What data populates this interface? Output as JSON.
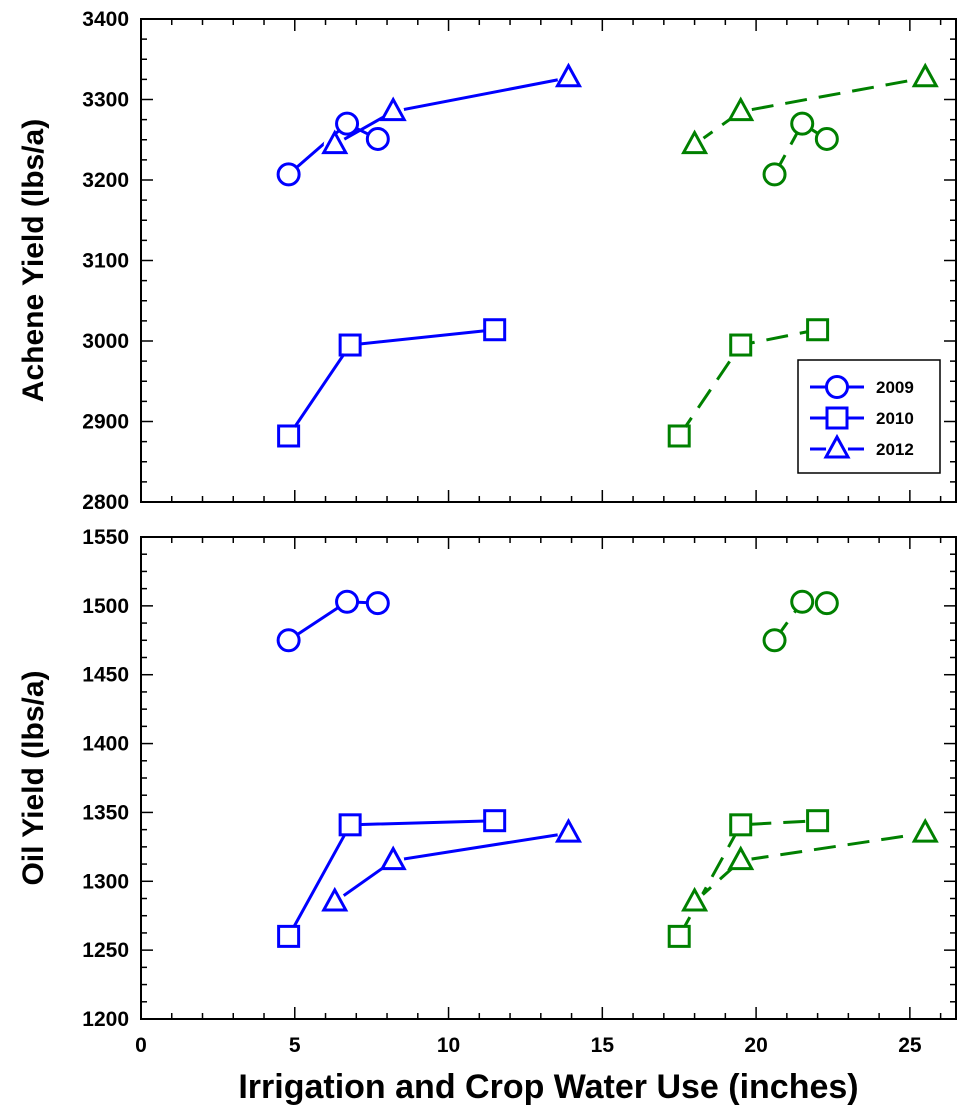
{
  "chart_data": [
    {
      "type": "line",
      "panel": "top",
      "ylabel": "Achene Yield (lbs/a)",
      "xlim": [
        0,
        26.5
      ],
      "ylim": [
        2800,
        3400
      ],
      "x_ticks": [
        0,
        5,
        10,
        15,
        20,
        25
      ],
      "y_ticks": [
        2800,
        2900,
        3000,
        3100,
        3200,
        3300,
        3400
      ],
      "x_tick_labels_shown": false,
      "legend": {
        "placement": "right",
        "entries": [
          {
            "label": "2009",
            "marker": "circle"
          },
          {
            "label": "2010",
            "marker": "square"
          },
          {
            "label": "2012",
            "marker": "triangle"
          }
        ]
      },
      "series": [
        {
          "year": "2009",
          "group": "irrigation",
          "color": "#0000ff",
          "dash": "solid",
          "marker": "circle",
          "x": [
            4.8,
            6.7,
            7.7
          ],
          "y": [
            3207,
            3270,
            3251
          ]
        },
        {
          "year": "2010",
          "group": "irrigation",
          "color": "#0000ff",
          "dash": "solid",
          "marker": "square",
          "x": [
            4.8,
            6.8,
            11.5
          ],
          "y": [
            2882,
            2995,
            3014
          ]
        },
        {
          "year": "2012",
          "group": "irrigation",
          "color": "#0000ff",
          "dash": "solid",
          "marker": "triangle",
          "x": [
            6.3,
            8.2,
            13.9
          ],
          "y": [
            3244,
            3285,
            3327
          ]
        },
        {
          "year": "2009",
          "group": "crop water use",
          "color": "#008000",
          "dash": "dashed",
          "marker": "circle",
          "x": [
            20.6,
            21.5,
            22.3
          ],
          "y": [
            3207,
            3270,
            3251
          ]
        },
        {
          "year": "2010",
          "group": "crop water use",
          "color": "#008000",
          "dash": "dashed",
          "marker": "square",
          "x": [
            17.5,
            19.5,
            22.0
          ],
          "y": [
            2882,
            2995,
            3014
          ]
        },
        {
          "year": "2012",
          "group": "crop water use",
          "color": "#008000",
          "dash": "dashed",
          "marker": "triangle",
          "x": [
            18.0,
            19.5,
            25.5
          ],
          "y": [
            3244,
            3285,
            3327
          ]
        }
      ]
    },
    {
      "type": "line",
      "panel": "bottom",
      "xlabel": "Irrigation and Crop Water Use (inches)",
      "ylabel": "Oil Yield (lbs/a)",
      "xlim": [
        0,
        26.5
      ],
      "ylim": [
        1200,
        1550
      ],
      "x_ticks": [
        0,
        5,
        10,
        15,
        20,
        25
      ],
      "y_ticks": [
        1200,
        1250,
        1300,
        1350,
        1400,
        1450,
        1500,
        1550
      ],
      "x_tick_labels_shown": true,
      "series": [
        {
          "year": "2009",
          "group": "irrigation",
          "color": "#0000ff",
          "dash": "solid",
          "marker": "circle",
          "x": [
            4.8,
            6.7,
            7.7
          ],
          "y": [
            1475,
            1503,
            1502
          ]
        },
        {
          "year": "2010",
          "group": "irrigation",
          "color": "#0000ff",
          "dash": "solid",
          "marker": "square",
          "x": [
            4.8,
            6.8,
            11.5
          ],
          "y": [
            1260,
            1341,
            1344
          ]
        },
        {
          "year": "2012",
          "group": "irrigation",
          "color": "#0000ff",
          "dash": "solid",
          "marker": "triangle",
          "x": [
            6.3,
            8.2,
            13.9
          ],
          "y": [
            1285,
            1315,
            1335
          ]
        },
        {
          "year": "2009",
          "group": "crop water use",
          "color": "#008000",
          "dash": "dashed",
          "marker": "circle",
          "x": [
            20.6,
            21.5,
            22.3
          ],
          "y": [
            1475,
            1503,
            1502
          ]
        },
        {
          "year": "2010",
          "group": "crop water use",
          "color": "#008000",
          "dash": "dashed",
          "marker": "square",
          "x": [
            17.5,
            19.5,
            22.0
          ],
          "y": [
            1260,
            1341,
            1344
          ]
        },
        {
          "year": "2012",
          "group": "crop water use",
          "color": "#008000",
          "dash": "dashed",
          "marker": "triangle",
          "x": [
            18.0,
            19.5,
            25.5
          ],
          "y": [
            1285,
            1315,
            1335
          ]
        }
      ]
    }
  ]
}
